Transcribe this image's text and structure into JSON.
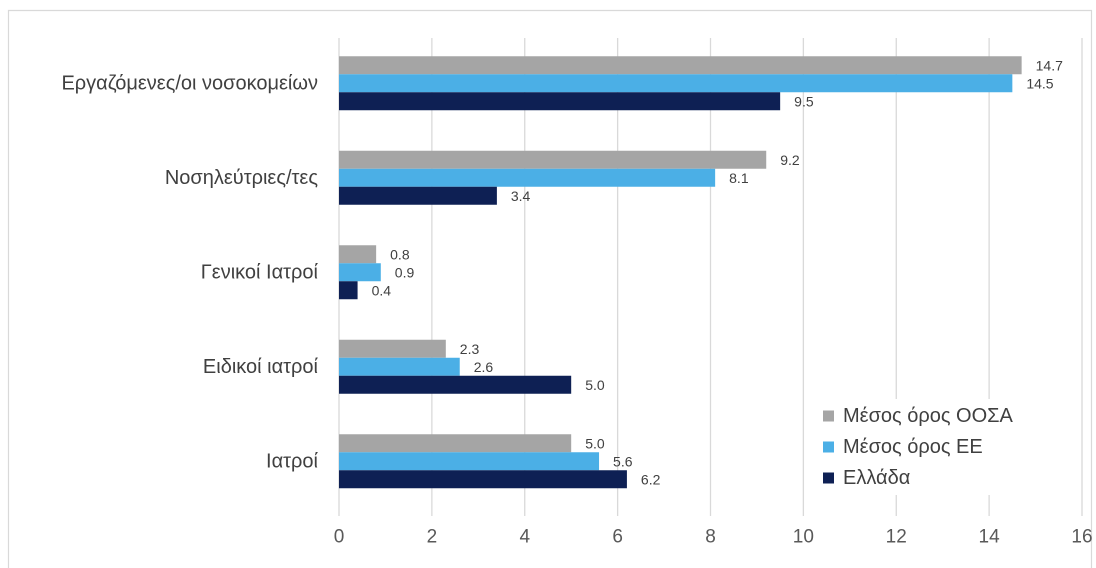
{
  "chart_data": {
    "type": "bar",
    "orientation": "horizontal",
    "categories": [
      "Εργαζόμενες/οι νοσοκομείων",
      "Νοσηλεύτριες/τες",
      "Γενικοί Ιατροί",
      "Ειδικοί ιατροί",
      "Ιατροί"
    ],
    "series": [
      {
        "name": "Μέσος όρος ΟΟΣΑ",
        "color": "#A5A5A5",
        "values": [
          14.7,
          9.2,
          0.8,
          2.3,
          5.0
        ]
      },
      {
        "name": "Μέσος όρος ΕΕ",
        "color": "#4BAFE6",
        "values": [
          14.5,
          8.1,
          0.9,
          2.6,
          5.6
        ]
      },
      {
        "name": "Ελλάδα",
        "color": "#0E2054",
        "values": [
          9.5,
          3.4,
          0.4,
          5.0,
          6.2
        ]
      }
    ],
    "xlim": [
      0,
      16
    ],
    "xticks": [
      0,
      2,
      4,
      6,
      8,
      10,
      12,
      14,
      16
    ],
    "grid": true,
    "legend_position": "bottom-right"
  }
}
